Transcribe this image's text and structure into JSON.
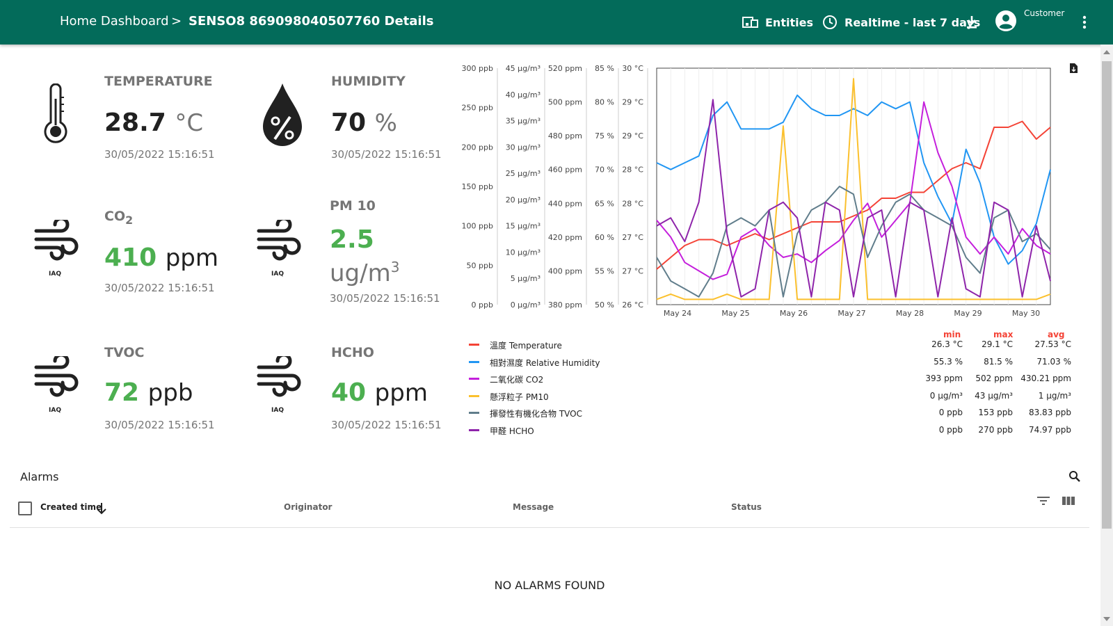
{
  "header": {
    "breadcrumb_home": "Home Dashboard",
    "breadcrumb_sep": ">",
    "breadcrumb_current": "SENSO8 869098040507760 Details",
    "entities_label": "Entities",
    "timewindow_label": "Realtime - last 7 days",
    "user_role": "Customer",
    "icons": [
      "entities-icon",
      "clock-icon",
      "download-icon",
      "account-icon",
      "more-vert-icon"
    ]
  },
  "cards": {
    "temperature": {
      "title": "TEMPERATURE",
      "value": "28.7",
      "unit": "°C",
      "time": "30/05/2022 15:16:51"
    },
    "humidity": {
      "title": "HUMIDITY",
      "value": "70",
      "unit": "%",
      "time": "30/05/2022 15:16:51"
    },
    "co2": {
      "title": "CO",
      "title_sub": "2",
      "value": "410",
      "unit": "ppm",
      "time": "30/05/2022 15:16:51",
      "icon_label": "IAQ"
    },
    "pm10": {
      "title": "PM 10",
      "value": "2.5",
      "unit": "ug/m",
      "unit_sup": "3",
      "time": "30/05/2022 15:16:51",
      "icon_label": "IAQ"
    },
    "tvoc": {
      "title": "TVOC",
      "value": "72",
      "unit": "ppb",
      "time": "30/05/2022 15:16:51",
      "icon_label": "IAQ"
    },
    "hcho": {
      "title": "HCHO",
      "value": "40",
      "unit": "ppm",
      "time": "30/05/2022 15:16:51",
      "icon_label": "IAQ"
    }
  },
  "colors": {
    "temperature": "#f44336",
    "humidity": "#2196f3",
    "co2": "#c41fdc",
    "pm10": "#fbc02d",
    "tvoc": "#607d8b",
    "hcho": "#8e24aa"
  },
  "chart_data": {
    "type": "line",
    "x_ticks": [
      "May 24",
      "May 25",
      "May 26",
      "May 27",
      "May 28",
      "May 29",
      "May 30"
    ],
    "axes": [
      {
        "id": "ppb",
        "ticks": [
          "300 ppb",
          "250 ppb",
          "200 ppb",
          "150 ppb",
          "100 ppb",
          "50 ppb",
          "0 ppb"
        ],
        "range": [
          0,
          300
        ]
      },
      {
        "id": "ugm3",
        "ticks": [
          "45 µg/m³",
          "40 µg/m³",
          "35 µg/m³",
          "30 µg/m³",
          "25 µg/m³",
          "20 µg/m³",
          "15 µg/m³",
          "10 µg/m³",
          "5 µg/m³",
          "0 µg/m³"
        ],
        "range": [
          0,
          45
        ]
      },
      {
        "id": "ppm",
        "ticks": [
          "520 ppm",
          "500 ppm",
          "480 ppm",
          "460 ppm",
          "440 ppm",
          "420 ppm",
          "400 ppm",
          "380 ppm"
        ],
        "range": [
          380,
          520
        ]
      },
      {
        "id": "pct",
        "ticks": [
          "85 %",
          "80 %",
          "75 %",
          "70 %",
          "65 %",
          "60 %",
          "55 %",
          "50 %"
        ],
        "range": [
          50,
          85
        ]
      },
      {
        "id": "degc",
        "ticks": [
          "30 °C",
          "29 °C",
          "29 °C",
          "28 °C",
          "28 °C",
          "27 °C",
          "27 °C",
          "26 °C"
        ],
        "range": [
          26,
          30
        ]
      }
    ],
    "series": [
      {
        "name": "溫度 Temperature",
        "axis": "degc",
        "color": "#f44336",
        "min": "26.3 °C",
        "max": "29.1 °C",
        "avg": "27.53 °C",
        "values": [
          26.6,
          26.8,
          27.0,
          27.1,
          27.1,
          27.0,
          27.1,
          27.2,
          27.1,
          27.2,
          27.3,
          27.4,
          27.4,
          27.4,
          27.5,
          27.6,
          27.8,
          27.8,
          27.9,
          27.9,
          28.1,
          28.3,
          28.4,
          28.3,
          29.0,
          29.0,
          29.1,
          28.8,
          29.0
        ]
      },
      {
        "name": "相對濕度 Relative Humidity",
        "axis": "pct",
        "color": "#2196f3",
        "min": "55.3 %",
        "max": "81.5 %",
        "avg": "71.03 %",
        "values": [
          71,
          70,
          71,
          72,
          78,
          80,
          76,
          76,
          76,
          77,
          81,
          79,
          78,
          78,
          79,
          78,
          80,
          79,
          80,
          71,
          66,
          62,
          73,
          68,
          60,
          56,
          58,
          62,
          70
        ]
      },
      {
        "name": "二氧化碳 CO2",
        "axis": "ppm",
        "color": "#c41fdc",
        "min": "393 ppm",
        "max": "502 ppm",
        "avg": "430.21 ppm",
        "values": [
          430,
          420,
          405,
          400,
          395,
          398,
          420,
          425,
          415,
          408,
          410,
          405,
          412,
          418,
          430,
          440,
          420,
          430,
          440,
          500,
          470,
          450,
          420,
          410,
          420,
          410,
          425,
          415,
          410
        ]
      },
      {
        "name": "懸浮粒子 PM10",
        "axis": "ugm3",
        "color": "#fbc02d",
        "min": "0 µg/m³",
        "max": "43 µg/m³",
        "avg": "1 µg/m³",
        "values": [
          1,
          2,
          1,
          1,
          1,
          2,
          1,
          1,
          1,
          34,
          1,
          1,
          1,
          1,
          43,
          1,
          1,
          1,
          1,
          1,
          1,
          1,
          1,
          1,
          1,
          1,
          1,
          1,
          2
        ]
      },
      {
        "name": "揮發性有機化合物 TVOC",
        "axis": "ppb",
        "color": "#607d8b",
        "min": "0 ppb",
        "max": "153 ppb",
        "avg": "83.83 ppb",
        "values": [
          60,
          30,
          20,
          10,
          40,
          100,
          110,
          100,
          120,
          10,
          90,
          120,
          130,
          150,
          140,
          60,
          100,
          130,
          140,
          120,
          110,
          100,
          60,
          40,
          110,
          120,
          80,
          90,
          70
        ]
      },
      {
        "name": "甲醛 HCHO",
        "axis": "ppb",
        "color": "#8e24aa",
        "min": "0 ppb",
        "max": "270 ppb",
        "avg": "74.97 ppb",
        "values": [
          100,
          110,
          80,
          130,
          260,
          90,
          10,
          20,
          120,
          130,
          110,
          10,
          130,
          120,
          10,
          110,
          120,
          10,
          130,
          120,
          10,
          110,
          20,
          10,
          130,
          120,
          10,
          100,
          30
        ]
      }
    ],
    "legend_headers": {
      "min": "min",
      "max": "max",
      "avg": "avg"
    },
    "legend_placement": "bottom",
    "grid": true
  },
  "alarms": {
    "title": "Alarms",
    "columns": [
      "Created time",
      "Originator",
      "Message",
      "Status"
    ],
    "empty_text": "NO ALARMS FOUND"
  }
}
